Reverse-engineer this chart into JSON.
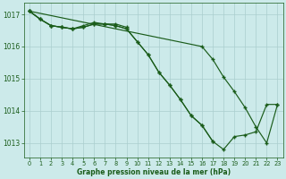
{
  "bg_color": "#cceaea",
  "grid_color": "#aacece",
  "line_color": "#1a5c1a",
  "axis_color": "#1a5c1a",
  "xlabel": "Graphe pression niveau de la mer (hPa)",
  "ylim": [
    1012.55,
    1017.35
  ],
  "yticks": [
    1013,
    1014,
    1015,
    1016,
    1017
  ],
  "xticks": [
    0,
    1,
    2,
    3,
    4,
    5,
    6,
    7,
    8,
    9,
    10,
    11,
    12,
    13,
    14,
    15,
    16,
    17,
    18,
    19,
    20,
    21,
    22,
    23
  ],
  "line1_x": [
    0,
    1,
    2,
    3,
    4,
    5,
    6,
    7,
    8,
    9
  ],
  "line1_y": [
    1017.1,
    1016.85,
    1016.65,
    1016.6,
    1016.55,
    1016.65,
    1016.75,
    1016.7,
    1016.7,
    1016.6
  ],
  "line2_x": [
    0,
    1,
    2,
    3,
    4,
    5,
    6,
    7,
    8,
    9,
    10,
    11,
    12,
    13,
    14,
    15,
    16,
    17
  ],
  "line2_y": [
    1017.1,
    1016.85,
    1016.65,
    1016.6,
    1016.55,
    1016.6,
    1016.7,
    1016.7,
    1016.65,
    1016.55,
    1016.15,
    1015.75,
    1015.2,
    1014.8,
    1014.35,
    1013.85,
    1013.55,
    1013.05
  ],
  "line3_x": [
    0,
    1,
    2,
    3,
    4,
    5,
    6,
    7,
    8,
    9,
    10,
    11,
    12,
    13,
    14,
    15,
    16,
    17,
    18,
    19,
    20,
    21,
    22,
    23
  ],
  "line3_y": [
    1017.1,
    1016.85,
    1016.65,
    1016.6,
    1016.55,
    1016.6,
    1016.7,
    1016.7,
    1016.65,
    1016.55,
    1016.15,
    1015.75,
    1015.2,
    1014.8,
    1014.35,
    1013.85,
    1013.55,
    1013.05,
    1012.8,
    1013.2,
    1013.25,
    1013.35,
    1014.2,
    1014.2
  ],
  "line4_x": [
    0,
    16,
    17,
    18,
    19,
    20,
    21,
    22,
    23
  ],
  "line4_y": [
    1017.1,
    1016.0,
    1015.6,
    1015.05,
    1014.6,
    1014.1,
    1013.5,
    1013.0,
    1014.2
  ]
}
